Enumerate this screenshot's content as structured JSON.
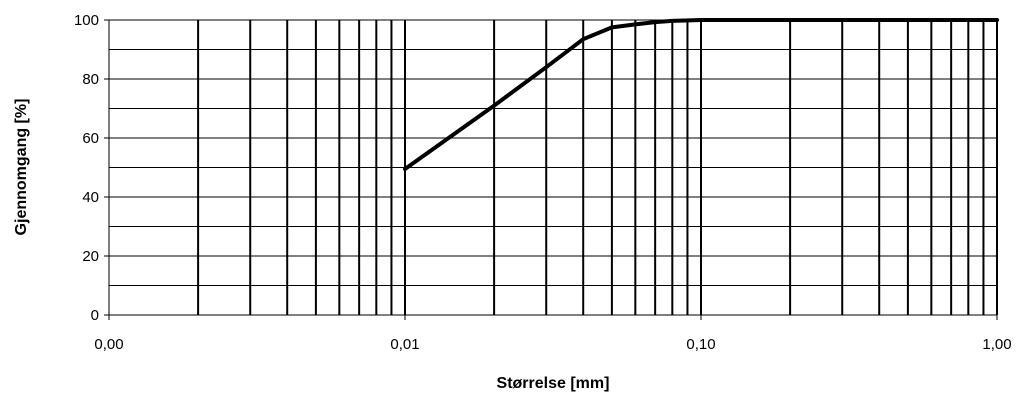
{
  "chart_data": {
    "type": "line",
    "title": "",
    "xlabel": "Størrelse [mm]",
    "ylabel": "Gjennomgang [%]",
    "x_scale": "log",
    "xlim": [
      0.001,
      1
    ],
    "ylim": [
      0,
      100
    ],
    "x_tick_labels": [
      "0,00",
      "0,01",
      "0,10",
      "1,00"
    ],
    "y_tick_labels": [
      "0",
      "20",
      "40",
      "60",
      "80",
      "100"
    ],
    "grid": true,
    "legend": "none",
    "series": [
      {
        "color": "#000000",
        "x": [
          0.01,
          0.02,
          0.03,
          0.04,
          0.05,
          0.06,
          0.07,
          0.08,
          0.1,
          1.0
        ],
        "y": [
          49.5,
          71,
          84,
          93.5,
          97.5,
          98.5,
          99.3,
          99.7,
          100,
          100
        ]
      }
    ]
  }
}
